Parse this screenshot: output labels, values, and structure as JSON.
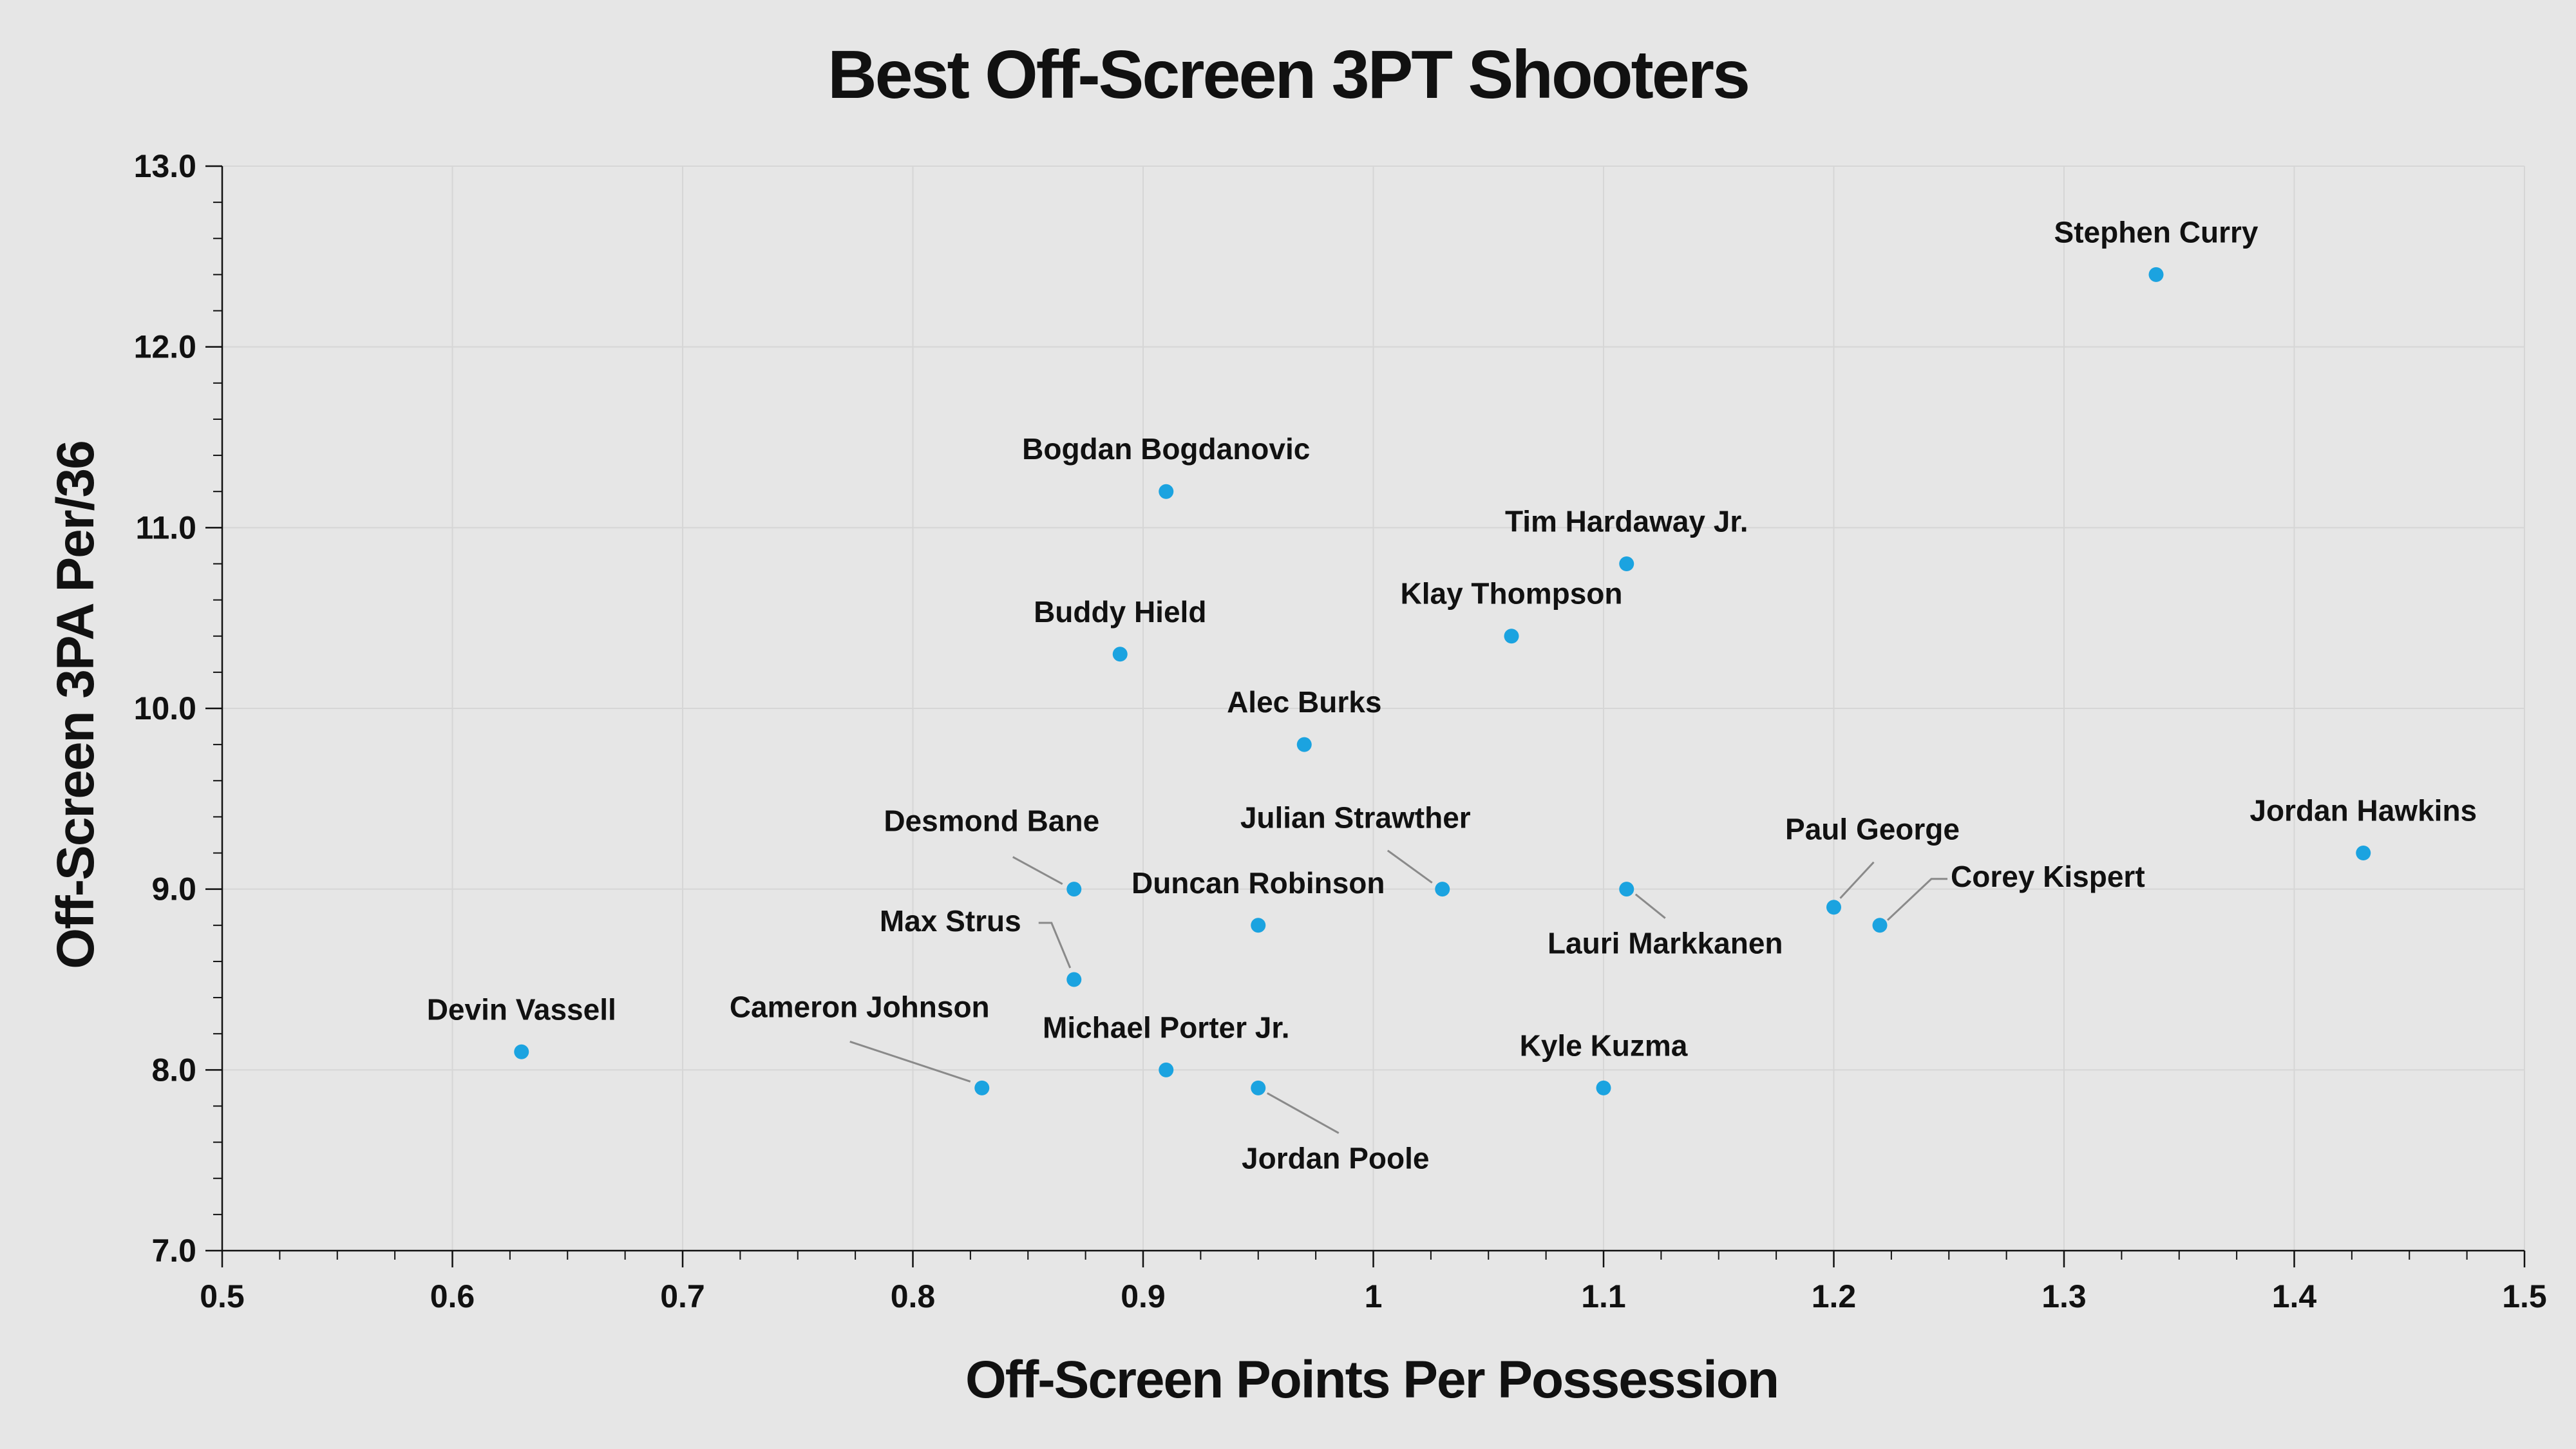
{
  "chart_data": {
    "type": "scatter",
    "title": "Best Off-Screen 3PT Shooters",
    "xlabel": "Off-Screen Points Per Possession",
    "ylabel": "Off-Screen 3PA Per/36",
    "xlim": [
      0.5,
      1.5
    ],
    "ylim": [
      7.0,
      13.0
    ],
    "x_ticks": [
      0.5,
      0.6,
      0.7,
      0.8,
      0.9,
      1.0,
      1.1,
      1.2,
      1.3,
      1.4,
      1.5
    ],
    "x_tick_labels": [
      "0.5",
      "0.6",
      "0.7",
      "0.8",
      "0.9",
      "1",
      "1.1",
      "1.2",
      "1.3",
      "1.4",
      "1.5"
    ],
    "y_ticks": [
      7.0,
      8.0,
      9.0,
      10.0,
      11.0,
      12.0,
      13.0
    ],
    "y_tick_labels": [
      "7.0",
      "8.0",
      "9.0",
      "10.0",
      "11.0",
      "12.0",
      "13.0"
    ],
    "grid": true,
    "point_color": "#1ba3e0",
    "background": "#e6e6e6",
    "points": [
      {
        "name": "Stephen Curry",
        "x": 1.34,
        "y": 12.4,
        "label_pos": "above"
      },
      {
        "name": "Bogdan Bogdanovic",
        "x": 0.91,
        "y": 11.2,
        "label_pos": "above"
      },
      {
        "name": "Tim Hardaway Jr.",
        "x": 1.11,
        "y": 10.8,
        "label_pos": "above"
      },
      {
        "name": "Klay Thompson",
        "x": 1.06,
        "y": 10.4,
        "label_pos": "above"
      },
      {
        "name": "Buddy Hield",
        "x": 0.89,
        "y": 10.3,
        "label_pos": "above"
      },
      {
        "name": "Alec Burks",
        "x": 0.97,
        "y": 9.8,
        "label_pos": "above"
      },
      {
        "name": "Jordan Hawkins",
        "x": 1.43,
        "y": 9.2,
        "label_pos": "above"
      },
      {
        "name": "Desmond Bane",
        "x": 0.87,
        "y": 9.0,
        "label_pos": "upper-left-leader"
      },
      {
        "name": "Julian Strawther",
        "x": 1.03,
        "y": 9.0,
        "label_pos": "upper-left-leader"
      },
      {
        "name": "Lauri Markkanen",
        "x": 1.11,
        "y": 9.0,
        "label_pos": "below-right-leader"
      },
      {
        "name": "Paul George",
        "x": 1.2,
        "y": 8.9,
        "label_pos": "upper-right-leader"
      },
      {
        "name": "Corey Kispert",
        "x": 1.22,
        "y": 8.8,
        "label_pos": "right-leader"
      },
      {
        "name": "Duncan Robinson",
        "x": 0.95,
        "y": 8.8,
        "label_pos": "above"
      },
      {
        "name": "Max Strus",
        "x": 0.87,
        "y": 8.5,
        "label_pos": "left-leader"
      },
      {
        "name": "Devin Vassell",
        "x": 0.63,
        "y": 8.1,
        "label_pos": "above"
      },
      {
        "name": "Michael Porter Jr.",
        "x": 0.91,
        "y": 8.0,
        "label_pos": "above"
      },
      {
        "name": "Cameron Johnson",
        "x": 0.83,
        "y": 7.9,
        "label_pos": "upper-left-leader"
      },
      {
        "name": "Jordan Poole",
        "x": 0.95,
        "y": 7.9,
        "label_pos": "below-right-leader"
      },
      {
        "name": "Kyle Kuzma",
        "x": 1.1,
        "y": 7.9,
        "label_pos": "above"
      }
    ]
  }
}
